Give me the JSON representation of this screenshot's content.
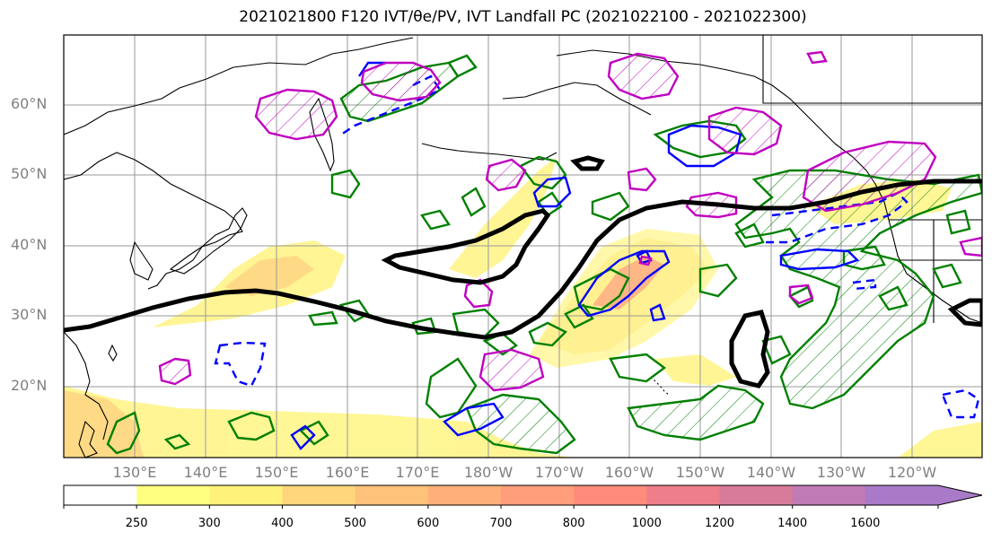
{
  "title": "2021021800 F120 IVT/θe/PV, IVT Landfall PC (2021022100 - 2021022300)",
  "map": {
    "lat_labels": [
      "60°N",
      "50°N",
      "40°N",
      "30°N",
      "20°N"
    ],
    "lon_labels": [
      "130°E",
      "140°E",
      "150°E",
      "160°E",
      "170°E",
      "180°W",
      "170°W",
      "160°W",
      "150°W",
      "140°W",
      "130°W",
      "120°W"
    ],
    "extent": {
      "lon_min": 120,
      "lon_max": 250,
      "lat_min": 10,
      "lat_max": 70
    },
    "fill_label": "IVT",
    "contour_colors": {
      "theta_e": "#000000",
      "pv_positive": "#008000",
      "pv_negative": "#0000ff",
      "pc": "#c000c0"
    }
  },
  "colorbar": {
    "levels": [
      "250",
      "300",
      "400",
      "500",
      "600",
      "700",
      "800",
      "1000",
      "1200",
      "1400",
      "1600"
    ],
    "colors": [
      "#ffffff",
      "#ffff80",
      "#fff27a",
      "#ffd67a",
      "#ffc27a",
      "#ffb07a",
      "#ff9e7a",
      "#ff8c7a",
      "#ee7f8a",
      "#d87a9a",
      "#c07ab4",
      "#a87ac8"
    ]
  }
}
